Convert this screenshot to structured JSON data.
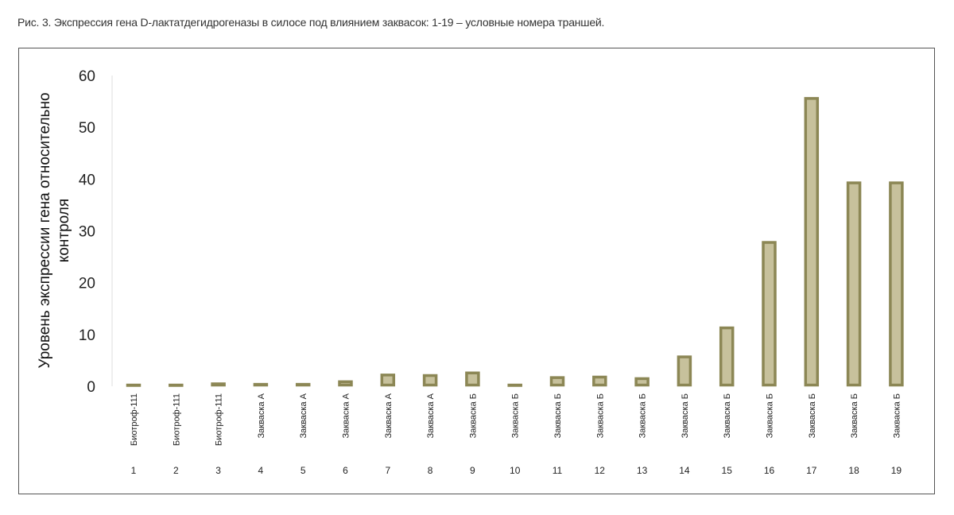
{
  "caption": "Рис. 3. Экспрессия гена D-лактатдегидрогеназы в силосе под влиянием заквасок: 1-19 – условные номера траншей.",
  "chart_data": {
    "type": "bar",
    "title": "",
    "ylabel_lines": [
      "Уровень экспрессии гена относительно",
      "контроля"
    ],
    "ylim": [
      0,
      60
    ],
    "yticks": [
      0,
      10,
      20,
      30,
      40,
      50,
      60
    ],
    "categories": [
      "Биотроф-111",
      "Биотроф-111",
      "Биотроф-111",
      "Закваска А",
      "Закваска А",
      "Закваска А",
      "Закваска А",
      "Закваска А",
      "Закваска Б",
      "Закваска Б",
      "Закваска Б",
      "Закваска Б",
      "Закваска Б",
      "Закваска Б",
      "Закваска Б",
      "Закваска Б",
      "Закваска Б",
      "Закваска Б",
      "Закваска Б"
    ],
    "numbers": [
      "1",
      "2",
      "3",
      "4",
      "5",
      "6",
      "7",
      "8",
      "9",
      "10",
      "11",
      "12",
      "13",
      "14",
      "15",
      "16",
      "17",
      "18",
      "19"
    ],
    "values": [
      0.4,
      0.4,
      0.7,
      0.6,
      0.6,
      1.1,
      2.4,
      2.3,
      2.8,
      0.4,
      1.9,
      2.0,
      1.7,
      5.9,
      11.5,
      28.0,
      55.8,
      39.5,
      39.5
    ],
    "colors": {
      "fill": "#c7c19c",
      "stroke": "#8c8755",
      "axis": "#dddddd"
    },
    "grid": false,
    "legend": "none"
  }
}
